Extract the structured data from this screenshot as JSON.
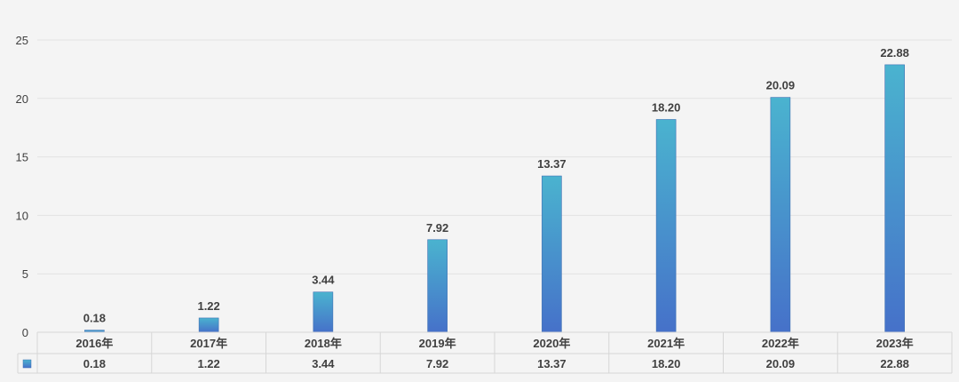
{
  "chart_data": {
    "type": "bar",
    "categories": [
      "2016年",
      "2017年",
      "2018年",
      "2019年",
      "2020年",
      "2021年",
      "2022年",
      "2023年"
    ],
    "values": [
      0.18,
      1.22,
      3.44,
      7.92,
      13.37,
      18.2,
      20.09,
      22.88
    ],
    "value_labels": [
      "0.18",
      "1.22",
      "3.44",
      "7.92",
      "13.37",
      "18.20",
      "20.09",
      "22.88"
    ],
    "ylim": [
      0,
      25
    ],
    "yticks": [
      0,
      5,
      10,
      15,
      20,
      25
    ],
    "grid": true,
    "data_table": true,
    "bar_color_top": "#4ab3cf",
    "bar_color_bottom": "#4671c9",
    "legend_key_color": "#4a9fd6"
  }
}
